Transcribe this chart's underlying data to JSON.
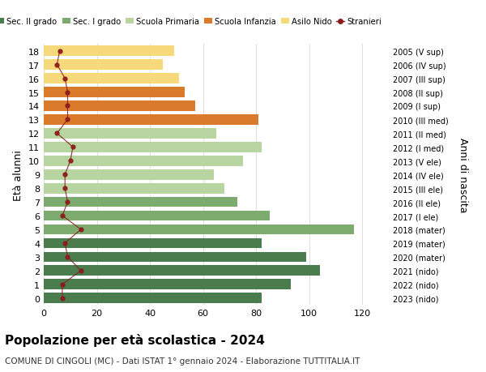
{
  "ages": [
    18,
    17,
    16,
    15,
    14,
    13,
    12,
    11,
    10,
    9,
    8,
    7,
    6,
    5,
    4,
    3,
    2,
    1,
    0
  ],
  "right_labels": [
    "2005 (V sup)",
    "2006 (IV sup)",
    "2007 (III sup)",
    "2008 (II sup)",
    "2009 (I sup)",
    "2010 (III med)",
    "2011 (II med)",
    "2012 (I med)",
    "2013 (V ele)",
    "2014 (IV ele)",
    "2015 (III ele)",
    "2016 (II ele)",
    "2017 (I ele)",
    "2018 (mater)",
    "2019 (mater)",
    "2020 (mater)",
    "2021 (nido)",
    "2022 (nido)",
    "2023 (nido)"
  ],
  "bar_values": [
    82,
    93,
    104,
    99,
    82,
    117,
    85,
    73,
    68,
    64,
    75,
    82,
    65,
    81,
    57,
    53,
    51,
    45,
    49
  ],
  "bar_colors": [
    "#4a7c4e",
    "#4a7c4e",
    "#4a7c4e",
    "#4a7c4e",
    "#4a7c4e",
    "#7daa6e",
    "#7daa6e",
    "#7daa6e",
    "#b8d4a0",
    "#b8d4a0",
    "#b8d4a0",
    "#b8d4a0",
    "#b8d4a0",
    "#d97b2a",
    "#d97b2a",
    "#d97b2a",
    "#f5d97a",
    "#f5d97a",
    "#f5d97a"
  ],
  "stranieri_values": [
    7,
    7,
    14,
    9,
    8,
    14,
    7,
    9,
    8,
    8,
    10,
    11,
    5,
    9,
    9,
    9,
    8,
    5,
    6
  ],
  "stranieri_color": "#8b1a1a",
  "legend_labels": [
    "Sec. II grado",
    "Sec. I grado",
    "Scuola Primaria",
    "Scuola Infanzia",
    "Asilo Nido",
    "Stranieri"
  ],
  "legend_colors": [
    "#4a7c4e",
    "#7daa6e",
    "#b8d4a0",
    "#d97b2a",
    "#f5d97a",
    "#8b1a1a"
  ],
  "ylabel": "Età alunni",
  "ylabel_right": "Anni di nascita",
  "title": "Popolazione per età scolastica - 2024",
  "subtitle": "COMUNE DI CINGOLI (MC) - Dati ISTAT 1° gennaio 2024 - Elaborazione TUTTITALIA.IT",
  "xlim": [
    0,
    130
  ],
  "xticks": [
    0,
    20,
    40,
    60,
    80,
    100,
    120
  ],
  "bg_color": "#ffffff",
  "grid_color": "#dddddd"
}
